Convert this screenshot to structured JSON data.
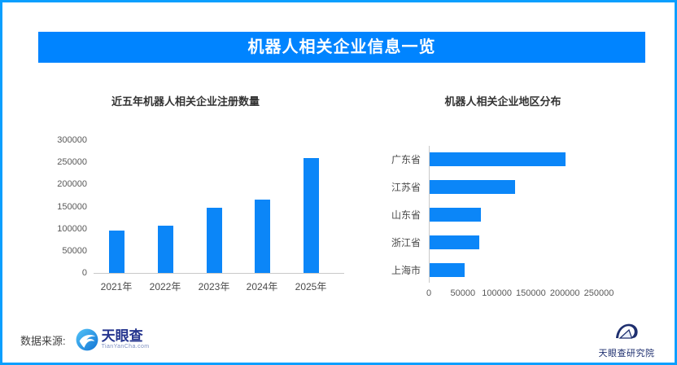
{
  "page": {
    "title": "机器人相关企业信息一览",
    "source_label": "数据来源:",
    "accent_color": "#0b86f8",
    "banner_color": "#0084ff",
    "border_color": "#0a9ffe"
  },
  "logos": {
    "tianyancha": {
      "name": "天眼查",
      "domain": "TianYanCha.com"
    },
    "research_institute": {
      "name": "天眼查研究院"
    }
  },
  "chart_data": [
    {
      "type": "bar",
      "orientation": "vertical",
      "title": "近五年机器人相关企业注册数量",
      "categories": [
        "2021年",
        "2022年",
        "2023年",
        "2024年",
        "2025年"
      ],
      "values": [
        95000,
        106000,
        148000,
        165000,
        260000
      ],
      "xlabel": "",
      "ylabel": "",
      "ylim": [
        0,
        300000
      ],
      "ytick_step": 50000,
      "grid": false,
      "legend": false,
      "bar_color": "#0b86f8"
    },
    {
      "type": "bar",
      "orientation": "horizontal",
      "title": "机器人相关企业地区分布",
      "categories": [
        "广东省",
        "江苏省",
        "山东省",
        "浙江省",
        "上海市"
      ],
      "values": [
        200000,
        126000,
        75000,
        73000,
        52000
      ],
      "xlabel": "",
      "ylabel": "",
      "xlim": [
        0,
        250000
      ],
      "xtick_step": 50000,
      "grid": false,
      "legend": false,
      "bar_color": "#0b86f8"
    }
  ]
}
